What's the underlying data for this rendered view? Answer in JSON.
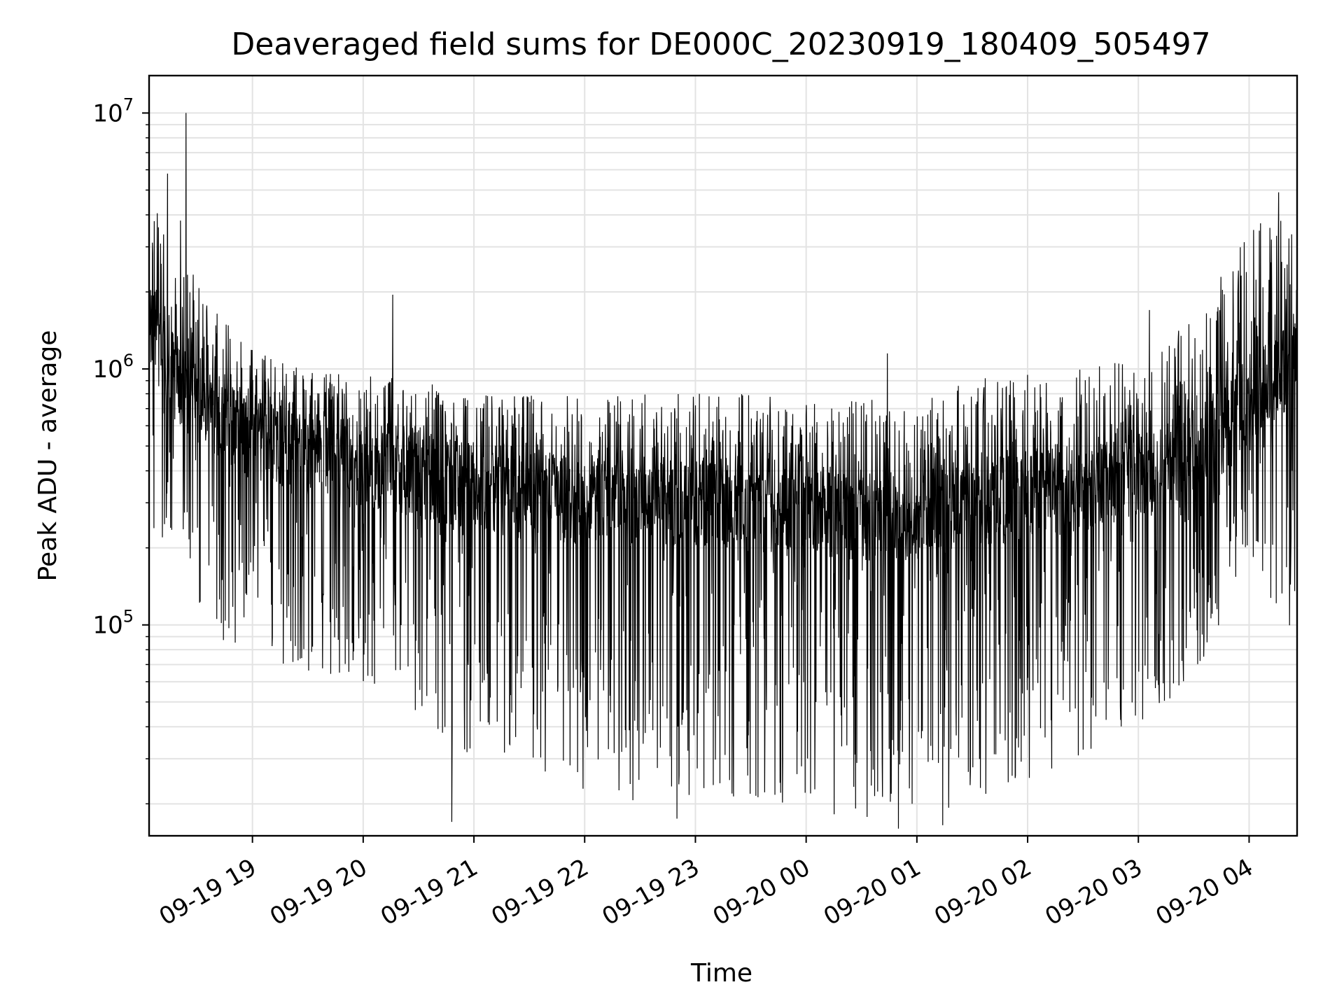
{
  "chart_data": {
    "type": "line",
    "title": "Deaveraged field sums for DE000C_20230919_180409_505497",
    "xlabel": "Time",
    "ylabel": "Peak ADU - average",
    "yscale": "log",
    "ylim": [
      15000,
      14000000
    ],
    "xlim": [
      "2023-09-19 18:04",
      "2023-09-20 04:26"
    ],
    "grid": true,
    "line_color": "#000000",
    "x_ticks": [
      {
        "label": "09-19 19",
        "value": "2023-09-19 19:00"
      },
      {
        "label": "09-19 20",
        "value": "2023-09-19 20:00"
      },
      {
        "label": "09-19 21",
        "value": "2023-09-19 21:00"
      },
      {
        "label": "09-19 22",
        "value": "2023-09-19 22:00"
      },
      {
        "label": "09-19 23",
        "value": "2023-09-19 23:00"
      },
      {
        "label": "09-20 00",
        "value": "2023-09-20 00:00"
      },
      {
        "label": "09-20 01",
        "value": "2023-09-20 01:00"
      },
      {
        "label": "09-20 02",
        "value": "2023-09-20 02:00"
      },
      {
        "label": "09-20 03",
        "value": "2023-09-20 03:00"
      },
      {
        "label": "09-20 04",
        "value": "2023-09-20 04:00"
      }
    ],
    "y_ticks": [
      {
        "base": "10",
        "exp": "5",
        "value": 100000
      },
      {
        "base": "10",
        "exp": "6",
        "value": 1000000
      },
      {
        "base": "10",
        "exp": "7",
        "value": 10000000
      }
    ],
    "series": [
      {
        "x": [
          "2023-09-19 18:04",
          "2023-09-19 18:20",
          "2023-09-19 18:40",
          "2023-09-19 19:00",
          "2023-09-19 19:30",
          "2023-09-19 20:00",
          "2023-09-19 20:30",
          "2023-09-19 21:00",
          "2023-09-19 21:30",
          "2023-09-19 22:00",
          "2023-09-19 22:30",
          "2023-09-19 23:00",
          "2023-09-19 23:30",
          "2023-09-20 00:00",
          "2023-09-20 00:30",
          "2023-09-20 01:00",
          "2023-09-20 01:30",
          "2023-09-20 02:00",
          "2023-09-20 02:30",
          "2023-09-20 03:00",
          "2023-09-20 03:30",
          "2023-09-20 04:00",
          "2023-09-20 04:26"
        ],
        "y_typical": [
          1500000,
          900000,
          650000,
          550000,
          480000,
          420000,
          380000,
          350000,
          320000,
          310000,
          300000,
          300000,
          290000,
          270000,
          260000,
          270000,
          290000,
          320000,
          340000,
          380000,
          470000,
          700000,
          1100000
        ],
        "y_high": [
          5000000,
          3000000,
          1700000,
          1200000,
          1000000,
          950000,
          900000,
          800000,
          800000,
          800000,
          800000,
          800000,
          800000,
          750000,
          750000,
          800000,
          900000,
          1000000,
          1000000,
          1100000,
          1600000,
          3500000,
          4500000
        ],
        "y_low": [
          250000,
          150000,
          90000,
          70000,
          65000,
          60000,
          45000,
          30000,
          25000,
          22000,
          20000,
          20000,
          20000,
          18000,
          17000,
          18000,
          20000,
          25000,
          30000,
          40000,
          60000,
          180000,
          80000
        ],
        "spikes": [
          {
            "x": "2023-09-19 18:24",
            "y": 10000000
          },
          {
            "x": "2023-09-19 18:14",
            "y": 5800000
          },
          {
            "x": "2023-09-19 18:21",
            "y": 3800000
          },
          {
            "x": "2023-09-19 20:16",
            "y": 1950000
          },
          {
            "x": "2023-09-20 00:44",
            "y": 1150000
          },
          {
            "x": "2023-09-20 03:06",
            "y": 1700000
          },
          {
            "x": "2023-09-20 04:16",
            "y": 4900000
          },
          {
            "x": "2023-09-19 20:48",
            "y": 17000
          },
          {
            "x": "2023-09-19 22:50",
            "y": 17500
          },
          {
            "x": "2023-09-20 00:50",
            "y": 16000
          },
          {
            "x": "2023-09-20 01:14",
            "y": 16500
          }
        ]
      }
    ]
  }
}
